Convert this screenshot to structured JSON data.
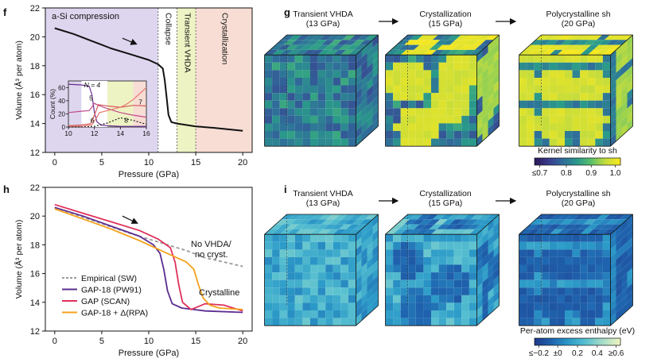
{
  "panels": {
    "f": {
      "letter": "f"
    },
    "g": {
      "letter": "g"
    },
    "h": {
      "letter": "h"
    },
    "i": {
      "letter": "i"
    }
  },
  "chart_data": [
    {
      "id": "f",
      "type": "line",
      "xlabel": "Pressure (GPa)",
      "ylabel": "Volume (Å³ per atom)",
      "xlim": [
        -1,
        21
      ],
      "ylim": [
        12,
        22
      ],
      "xticks": [
        "0",
        "5",
        "10",
        "15",
        "20"
      ],
      "yticks": [
        "12",
        "14",
        "16",
        "18",
        "20",
        "22"
      ],
      "regions": [
        {
          "label": "a-Si compression",
          "from": -1,
          "to": 11,
          "color": "#ddd6ee"
        },
        {
          "label": "Collapse",
          "from": 11,
          "to": 13,
          "color": "#ffffff"
        },
        {
          "label": "Transient VHDA",
          "from": 13,
          "to": 15,
          "color": "#eef3c4"
        },
        {
          "label": "Crystallization",
          "from": 15,
          "to": 21,
          "color": "#f7ddd4"
        }
      ],
      "series": [
        {
          "color": "#111111",
          "x": [
            0,
            2,
            4,
            6,
            8,
            10,
            11,
            11.5,
            11.7,
            11.9,
            12.1,
            12.4,
            13,
            15,
            17,
            20
          ],
          "y": [
            20.6,
            20.2,
            19.7,
            19.2,
            18.8,
            18.4,
            18.1,
            17.8,
            17.0,
            15.8,
            14.6,
            14.1,
            14.0,
            13.8,
            13.7,
            13.5
          ]
        }
      ],
      "inset": {
        "xlabel": "",
        "ylabel": "Count (%)",
        "xlim": [
          10,
          16
        ],
        "ylim": [
          0,
          70
        ],
        "xticks": [
          "10",
          "12",
          "14",
          "16"
        ],
        "yticks": [
          "0",
          "20",
          "40",
          "60"
        ],
        "labels": [
          "N = 4",
          "5",
          "6",
          "7",
          "8"
        ],
        "series": [
          {
            "name": "4",
            "color": "#6a2c91",
            "x": [
              10,
              11,
              11.6,
              11.8,
              12.0,
              12.2,
              12.5,
              13,
              14,
              15,
              16
            ],
            "y": [
              65,
              64,
              62,
              50,
              22,
              8,
              3,
              2,
              1,
              1,
              1
            ]
          },
          {
            "name": "5",
            "color": "#c04a8c",
            "x": [
              10,
              11,
              11.6,
              11.8,
              12.0,
              12.3,
              13,
              14,
              15,
              16
            ],
            "y": [
              22,
              24,
              25,
              30,
              36,
              33,
              28,
              22,
              18,
              15
            ]
          },
          {
            "name": "6",
            "color": "#d65b5b",
            "x": [
              10,
              11,
              11.7,
              12.0,
              12.3,
              13,
              14,
              15,
              16
            ],
            "y": [
              2,
              3,
              5,
              18,
              34,
              32,
              30,
              33,
              32
            ]
          },
          {
            "name": "7",
            "color": "#e87870",
            "x": [
              10,
              11,
              11.8,
              12.1,
              12.4,
              13,
              14,
              14.5,
              15,
              16
            ],
            "y": [
              1,
              1,
              3,
              12,
              22,
              25,
              30,
              35,
              42,
              60
            ]
          },
          {
            "name": "8",
            "color": "#222222",
            "dashed": true,
            "x": [
              10,
              11,
              12,
              13,
              14,
              15,
              16
            ],
            "y": [
              0,
              0,
              1,
              6,
              14,
              10,
              4
            ]
          }
        ]
      }
    },
    {
      "id": "h",
      "type": "line",
      "xlabel": "Pressure (GPa)",
      "ylabel": "Volume (Å³ per atom)",
      "xlim": [
        -1,
        21
      ],
      "ylim": [
        12,
        22
      ],
      "xticks": [
        "0",
        "5",
        "10",
        "15",
        "20"
      ],
      "yticks": [
        "12",
        "14",
        "16",
        "18",
        "20",
        "22"
      ],
      "annotations": [
        "No VHDA/",
        "no cryst.",
        "Crystalline"
      ],
      "legend": "bottom-left",
      "series": [
        {
          "name": "Empirical (SW)",
          "color": "#9a9a9a",
          "dashed": true,
          "x": [
            0,
            4,
            8,
            12,
            14,
            16,
            18,
            20
          ],
          "y": [
            20.6,
            19.7,
            18.8,
            18.0,
            17.6,
            17.1,
            16.8,
            16.5
          ]
        },
        {
          "name": "GAP-18 (PW91)",
          "color": "#5b2c8f",
          "x": [
            0,
            3,
            6,
            9,
            10.5,
            11.2,
            11.6,
            12.0,
            12.5,
            13.5,
            16,
            20
          ],
          "y": [
            20.6,
            20.0,
            19.3,
            18.6,
            18.0,
            17.4,
            16.3,
            14.8,
            13.9,
            13.6,
            13.4,
            13.3
          ]
        },
        {
          "name": "GAP (SCAN)",
          "color": "#e0305a",
          "x": [
            0,
            3,
            6,
            9,
            11,
            12.3,
            12.8,
            13.2,
            13.6,
            14.5,
            16,
            18,
            20
          ],
          "y": [
            20.8,
            20.2,
            19.6,
            19.0,
            18.4,
            17.8,
            16.8,
            15.2,
            14.0,
            13.5,
            13.9,
            13.8,
            13.4
          ]
        },
        {
          "name": "GAP-18 + Δ(RPA)",
          "color": "#f5a21c",
          "x": [
            0,
            3,
            6,
            9,
            12,
            14,
            14.8,
            15.3,
            15.8,
            16.5,
            17.5,
            20
          ],
          "y": [
            20.5,
            19.8,
            19.1,
            18.3,
            17.4,
            16.8,
            16.3,
            15.2,
            14.3,
            13.8,
            13.6,
            13.5
          ]
        }
      ]
    }
  ],
  "snapshots": {
    "g": [
      {
        "title": "Transient VHDA",
        "subtitle": "(13 GPa)"
      },
      {
        "title": "Crystallization",
        "subtitle": "(15 GPa)"
      },
      {
        "title": "Polycrystalline sh",
        "subtitle": "(20 GPa)"
      }
    ],
    "i": [
      {
        "title": "Transient VHDA",
        "subtitle": "(13 GPa)"
      },
      {
        "title": "Crystallization",
        "subtitle": "(15 GPa)"
      },
      {
        "title": "Polycrystalline sh",
        "subtitle": "(20 GPa)"
      }
    ]
  },
  "colorbars": {
    "g": {
      "label": "Kernel similarity to sh",
      "ticks": [
        "≤0.7",
        "0.8",
        "0.9",
        "1.0"
      ],
      "colors": [
        "#2b1a5c",
        "#3a3f8f",
        "#2f6e9a",
        "#2a9a8a",
        "#5cc26a",
        "#c4dc3c",
        "#f7e81f"
      ]
    },
    "i": {
      "label": "Per-atom excess enthalpy (eV)",
      "ticks": [
        "≤−0.2",
        "±0",
        "0.2",
        "0.4",
        "≥0.6"
      ],
      "colors": [
        "#1e3a8c",
        "#1f66b0",
        "#2c9bc8",
        "#58c0d0",
        "#a6dcc8",
        "#ecf4c0"
      ]
    }
  }
}
